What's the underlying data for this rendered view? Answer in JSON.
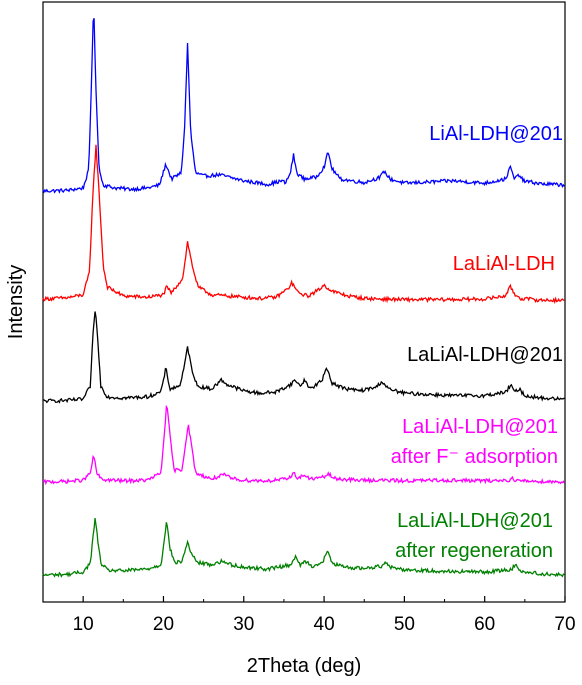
{
  "chart_data": {
    "type": "line",
    "xlabel": "2Theta (deg)",
    "ylabel": "Intensity",
    "xlim": [
      5,
      70
    ],
    "xticks": [
      10,
      20,
      30,
      40,
      50,
      60,
      70
    ],
    "y_ticks_labeled": false,
    "grid": false,
    "legend": "inline labels beside each trace",
    "series": [
      {
        "name": "LiAl-LDH@201",
        "line1": "LiAl-LDH@201",
        "line2": "",
        "color": "#0000ff",
        "baseline": 0.685,
        "points": [
          [
            5,
            0.685
          ],
          [
            8,
            0.686
          ],
          [
            10,
            0.69
          ],
          [
            10.7,
            0.72
          ],
          [
            11.0,
            0.85
          ],
          [
            11.3,
            1.0
          ],
          [
            11.6,
            0.85
          ],
          [
            12.0,
            0.72
          ],
          [
            12.5,
            0.695
          ],
          [
            14,
            0.69
          ],
          [
            16,
            0.688
          ],
          [
            18,
            0.69
          ],
          [
            19.5,
            0.695
          ],
          [
            20.3,
            0.73
          ],
          [
            21,
            0.705
          ],
          [
            22.2,
            0.715
          ],
          [
            22.6,
            0.78
          ],
          [
            23.0,
            0.93
          ],
          [
            23.4,
            0.78
          ],
          [
            24,
            0.715
          ],
          [
            25,
            0.71
          ],
          [
            27,
            0.712
          ],
          [
            30,
            0.702
          ],
          [
            33,
            0.696
          ],
          [
            34.8,
            0.702
          ],
          [
            35.2,
            0.698
          ],
          [
            35.8,
            0.715
          ],
          [
            36.2,
            0.745
          ],
          [
            36.6,
            0.715
          ],
          [
            37.5,
            0.705
          ],
          [
            39,
            0.708
          ],
          [
            40.0,
            0.725
          ],
          [
            40.5,
            0.75
          ],
          [
            41,
            0.722
          ],
          [
            42,
            0.705
          ],
          [
            45,
            0.699
          ],
          [
            47.0,
            0.708
          ],
          [
            47.5,
            0.718
          ],
          [
            48.2,
            0.705
          ],
          [
            50,
            0.698
          ],
          [
            53,
            0.7
          ],
          [
            56,
            0.702
          ],
          [
            58,
            0.7
          ],
          [
            60,
            0.698
          ],
          [
            62.6,
            0.705
          ],
          [
            63.2,
            0.725
          ],
          [
            63.7,
            0.705
          ],
          [
            64.3,
            0.712
          ],
          [
            64.8,
            0.702
          ],
          [
            67,
            0.697
          ],
          [
            70,
            0.695
          ]
        ]
      },
      {
        "name": "LaLiAl-LDH",
        "line1": "LaLiAl-LDH",
        "line2": "",
        "color": "#ff0000",
        "baseline": 0.505,
        "points": [
          [
            5,
            0.505
          ],
          [
            8,
            0.507
          ],
          [
            10,
            0.512
          ],
          [
            10.8,
            0.55
          ],
          [
            11.2,
            0.68
          ],
          [
            11.6,
            0.76
          ],
          [
            12.0,
            0.68
          ],
          [
            12.5,
            0.56
          ],
          [
            13,
            0.525
          ],
          [
            15,
            0.51
          ],
          [
            18,
            0.508
          ],
          [
            20.0,
            0.512
          ],
          [
            20.4,
            0.525
          ],
          [
            21,
            0.515
          ],
          [
            22.4,
            0.54
          ],
          [
            23.0,
            0.6
          ],
          [
            23.6,
            0.56
          ],
          [
            24.3,
            0.525
          ],
          [
            26,
            0.512
          ],
          [
            28,
            0.51
          ],
          [
            30,
            0.508
          ],
          [
            32,
            0.506
          ],
          [
            34,
            0.508
          ],
          [
            35.5,
            0.522
          ],
          [
            36.0,
            0.532
          ],
          [
            36.8,
            0.515
          ],
          [
            38,
            0.51
          ],
          [
            39.3,
            0.52
          ],
          [
            40.0,
            0.528
          ],
          [
            41,
            0.518
          ],
          [
            43,
            0.51
          ],
          [
            45,
            0.506
          ],
          [
            47,
            0.505
          ],
          [
            50,
            0.504
          ],
          [
            55,
            0.504
          ],
          [
            60,
            0.505
          ],
          [
            62.5,
            0.51
          ],
          [
            63.2,
            0.525
          ],
          [
            63.8,
            0.512
          ],
          [
            64.5,
            0.506
          ],
          [
            67,
            0.503
          ],
          [
            70,
            0.503
          ]
        ]
      },
      {
        "name": "LaLiAl-LDH@201",
        "line1": "LaLiAl-LDH@201",
        "line2": "",
        "color": "#000000",
        "baseline": 0.335,
        "points": [
          [
            5,
            0.335
          ],
          [
            8,
            0.336
          ],
          [
            10,
            0.338
          ],
          [
            10.9,
            0.36
          ],
          [
            11.2,
            0.44
          ],
          [
            11.5,
            0.49
          ],
          [
            11.8,
            0.44
          ],
          [
            12.2,
            0.36
          ],
          [
            13,
            0.342
          ],
          [
            15,
            0.34
          ],
          [
            18,
            0.342
          ],
          [
            19.7,
            0.35
          ],
          [
            20.3,
            0.39
          ],
          [
            20.8,
            0.355
          ],
          [
            22.0,
            0.36
          ],
          [
            22.5,
            0.385
          ],
          [
            23.0,
            0.425
          ],
          [
            23.5,
            0.39
          ],
          [
            24.2,
            0.36
          ],
          [
            26,
            0.355
          ],
          [
            27.2,
            0.37
          ],
          [
            28,
            0.362
          ],
          [
            30,
            0.352
          ],
          [
            32,
            0.348
          ],
          [
            34,
            0.35
          ],
          [
            35.8,
            0.362
          ],
          [
            36.4,
            0.37
          ],
          [
            37.0,
            0.36
          ],
          [
            37.6,
            0.37
          ],
          [
            38.3,
            0.355
          ],
          [
            39.8,
            0.37
          ],
          [
            40.3,
            0.392
          ],
          [
            41,
            0.365
          ],
          [
            42.5,
            0.356
          ],
          [
            44.5,
            0.352
          ],
          [
            46.5,
            0.358
          ],
          [
            47.2,
            0.368
          ],
          [
            48,
            0.355
          ],
          [
            50,
            0.348
          ],
          [
            53,
            0.346
          ],
          [
            56,
            0.344
          ],
          [
            60,
            0.344
          ],
          [
            62.7,
            0.35
          ],
          [
            63.2,
            0.362
          ],
          [
            63.7,
            0.35
          ],
          [
            64.3,
            0.355
          ],
          [
            65,
            0.344
          ],
          [
            67,
            0.34
          ],
          [
            70,
            0.338
          ]
        ]
      },
      {
        "name": "LaLiAl-LDH@201 after F⁻ adsorption",
        "line1": "LaLiAl-LDH@201",
        "line2": "after F⁻ adsorption",
        "color": "#ff00ff",
        "baseline": 0.2,
        "points": [
          [
            5,
            0.2
          ],
          [
            8,
            0.201
          ],
          [
            10,
            0.203
          ],
          [
            10.9,
            0.215
          ],
          [
            11.3,
            0.245
          ],
          [
            11.7,
            0.215
          ],
          [
            12.3,
            0.204
          ],
          [
            15,
            0.202
          ],
          [
            18,
            0.203
          ],
          [
            19.7,
            0.215
          ],
          [
            20.1,
            0.28
          ],
          [
            20.4,
            0.33
          ],
          [
            20.8,
            0.28
          ],
          [
            21.3,
            0.22
          ],
          [
            22.3,
            0.22
          ],
          [
            22.8,
            0.27
          ],
          [
            23.1,
            0.295
          ],
          [
            23.5,
            0.26
          ],
          [
            24.0,
            0.215
          ],
          [
            26,
            0.205
          ],
          [
            27.5,
            0.212
          ],
          [
            28.5,
            0.206
          ],
          [
            30,
            0.203
          ],
          [
            33,
            0.202
          ],
          [
            35.5,
            0.205
          ],
          [
            36.2,
            0.215
          ],
          [
            36.8,
            0.206
          ],
          [
            37.5,
            0.212
          ],
          [
            38.2,
            0.205
          ],
          [
            40,
            0.208
          ],
          [
            40.5,
            0.214
          ],
          [
            41.2,
            0.206
          ],
          [
            44,
            0.203
          ],
          [
            47,
            0.203
          ],
          [
            50,
            0.202
          ],
          [
            55,
            0.203
          ],
          [
            60,
            0.202
          ],
          [
            63,
            0.203
          ],
          [
            63.5,
            0.206
          ],
          [
            64,
            0.202
          ],
          [
            67,
            0.201
          ],
          [
            70,
            0.2
          ]
        ]
      },
      {
        "name": "LaLiAl-LDH@201 after regeneration",
        "line1": "LaLiAl-LDH@201",
        "line2": "after regeneration",
        "color": "#008000",
        "baseline": 0.045,
        "points": [
          [
            5,
            0.045
          ],
          [
            8,
            0.046
          ],
          [
            10,
            0.05
          ],
          [
            10.9,
            0.065
          ],
          [
            11.2,
            0.105
          ],
          [
            11.5,
            0.14
          ],
          [
            11.8,
            0.105
          ],
          [
            12.2,
            0.065
          ],
          [
            13,
            0.053
          ],
          [
            15,
            0.052
          ],
          [
            18,
            0.055
          ],
          [
            19.7,
            0.062
          ],
          [
            20.1,
            0.105
          ],
          [
            20.4,
            0.135
          ],
          [
            20.8,
            0.09
          ],
          [
            21.4,
            0.065
          ],
          [
            22.3,
            0.068
          ],
          [
            22.8,
            0.09
          ],
          [
            23.0,
            0.1
          ],
          [
            23.5,
            0.08
          ],
          [
            24.2,
            0.066
          ],
          [
            26,
            0.062
          ],
          [
            27.3,
            0.068
          ],
          [
            28.5,
            0.062
          ],
          [
            30,
            0.058
          ],
          [
            33,
            0.055
          ],
          [
            35.8,
            0.062
          ],
          [
            36.4,
            0.075
          ],
          [
            37.0,
            0.062
          ],
          [
            37.7,
            0.068
          ],
          [
            38.5,
            0.06
          ],
          [
            39.8,
            0.065
          ],
          [
            40.4,
            0.085
          ],
          [
            41,
            0.065
          ],
          [
            42.5,
            0.058
          ],
          [
            45,
            0.056
          ],
          [
            47.2,
            0.06
          ],
          [
            47.6,
            0.068
          ],
          [
            48.3,
            0.058
          ],
          [
            50,
            0.054
          ],
          [
            53,
            0.052
          ],
          [
            56,
            0.051
          ],
          [
            60,
            0.05
          ],
          [
            63.3,
            0.054
          ],
          [
            63.8,
            0.062
          ],
          [
            64.3,
            0.054
          ],
          [
            65,
            0.05
          ],
          [
            67,
            0.047
          ],
          [
            70,
            0.045
          ]
        ]
      }
    ]
  }
}
